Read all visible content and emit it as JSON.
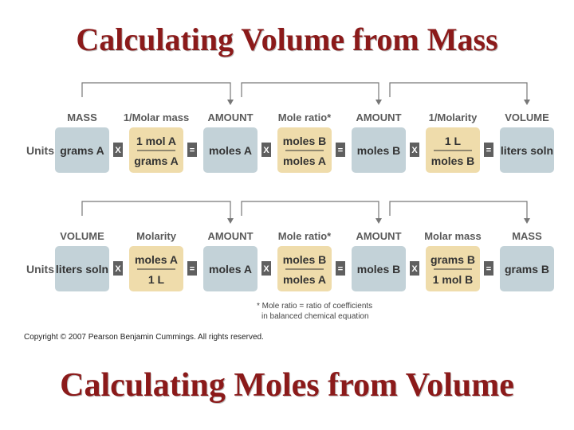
{
  "titles": {
    "top": "Calculating Volume from Mass",
    "bottom": "Calculating Moles from Volume"
  },
  "units_label": "Units:",
  "operators": {
    "multiply": "X",
    "equals": "="
  },
  "colors": {
    "quantity_box": "#c3d2d8",
    "factor_box": "#efdcab",
    "operator": "#5f5f5f",
    "arrow": "#777777",
    "title": "#8b1a1a"
  },
  "rows": [
    {
      "headers": [
        "MASS",
        "1/Molar mass",
        "AMOUNT",
        "Mole ratio*",
        "AMOUNT",
        "1/Molarity",
        "VOLUME"
      ],
      "boxes": [
        {
          "kind": "quantity",
          "text": "grams A"
        },
        {
          "kind": "factor",
          "top": "1 mol A",
          "bottom": "grams A"
        },
        {
          "kind": "quantity",
          "text": "moles A"
        },
        {
          "kind": "factor",
          "top": "moles B",
          "bottom": "moles A"
        },
        {
          "kind": "quantity",
          "text": "moles B"
        },
        {
          "kind": "factor",
          "top": "1 L",
          "bottom": "moles B"
        },
        {
          "kind": "quantity",
          "text": "liters soln"
        }
      ]
    },
    {
      "headers": [
        "VOLUME",
        "Molarity",
        "AMOUNT",
        "Mole ratio*",
        "AMOUNT",
        "Molar mass",
        "MASS"
      ],
      "boxes": [
        {
          "kind": "quantity",
          "text": "liters soln"
        },
        {
          "kind": "factor",
          "top": "moles A",
          "bottom": "1 L"
        },
        {
          "kind": "quantity",
          "text": "moles A"
        },
        {
          "kind": "factor",
          "top": "moles B",
          "bottom": "moles A"
        },
        {
          "kind": "quantity",
          "text": "moles B"
        },
        {
          "kind": "factor",
          "top": "grams B",
          "bottom": "1 mol B"
        },
        {
          "kind": "quantity",
          "text": "grams B"
        }
      ]
    }
  ],
  "footnote": {
    "line1": "* Mole ratio = ratio of coefficients",
    "line2": "in balanced chemical equation"
  },
  "copyright": "Copyright © 2007 Pearson Benjamin Cummings. All rights reserved."
}
